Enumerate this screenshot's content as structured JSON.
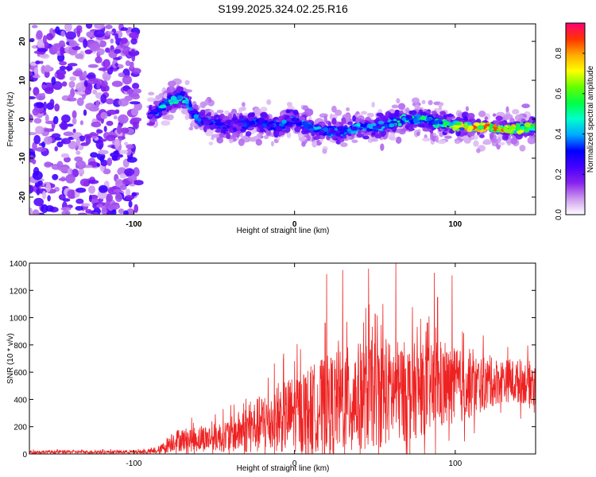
{
  "figure_title": "S199.2025.324.02.25.R16",
  "chart_data": [
    {
      "type": "heatmap",
      "title": "S199.2025.324.02.25.R16",
      "xlabel": "Height of straight line (km)",
      "ylabel": "Frequency (Hz)",
      "xlim": [
        -165,
        150
      ],
      "ylim": [
        -24.5,
        24.5
      ],
      "xticks": [
        -100,
        0,
        100
      ],
      "yticks": [
        -20,
        -10,
        0,
        10,
        20
      ],
      "colorbar": {
        "label": "Normalized spectral amplitude",
        "range": [
          0.0,
          0.95
        ],
        "ticks": [
          0.0,
          0.2,
          0.4,
          0.6,
          0.8
        ],
        "colors": [
          "#ffffff",
          "#cc99ee",
          "#8822ee",
          "#4400ff",
          "#0000ff",
          "#00aaff",
          "#00ffcc",
          "#00ff44",
          "#66ff00",
          "#ffff00",
          "#ffaa00",
          "#ff3300",
          "#ff0077"
        ]
      },
      "ridge": {
        "x": [
          -90,
          -80,
          -70,
          -60,
          -50,
          -40,
          -30,
          -20,
          -10,
          0,
          10,
          20,
          30,
          40,
          50,
          60,
          70,
          80,
          90,
          100,
          110,
          120,
          130,
          140,
          148
        ],
        "center_hz": [
          1,
          4,
          6,
          0,
          -1,
          -2,
          -1,
          -1,
          -2,
          0,
          -2,
          -3,
          -3,
          -2,
          -2,
          -1,
          0,
          0,
          -1,
          -1.5,
          -2,
          -2,
          -2.5,
          -2.5,
          -2
        ],
        "peak_amplitude": [
          0.35,
          0.5,
          0.5,
          0.4,
          0.35,
          0.3,
          0.35,
          0.35,
          0.4,
          0.4,
          0.45,
          0.4,
          0.4,
          0.45,
          0.45,
          0.5,
          0.55,
          0.55,
          0.6,
          0.7,
          0.85,
          0.9,
          0.85,
          0.7,
          0.6
        ]
      },
      "noise_region_km": [
        -165,
        -97
      ]
    },
    {
      "type": "line",
      "xlabel": "Height of straight line (km)",
      "ylabel": "SNR (10 * v/v)",
      "xlim": [
        -165,
        150
      ],
      "ylim": [
        0,
        1400
      ],
      "xticks": [
        -100,
        0,
        100
      ],
      "yticks": [
        0,
        200,
        400,
        600,
        800,
        1000,
        1200,
        1400
      ],
      "series": [
        {
          "name": "SNR",
          "color": "#ee2222",
          "envelope_x": [
            -165,
            -100,
            -85,
            -80,
            -75,
            -60,
            -50,
            -40,
            -30,
            -20,
            -10,
            0,
            10,
            20,
            30,
            40,
            50,
            60,
            70,
            80,
            90,
            100,
            110,
            120,
            130,
            140,
            150
          ],
          "baseline": [
            15,
            15,
            20,
            60,
            100,
            110,
            120,
            140,
            180,
            220,
            260,
            300,
            330,
            370,
            390,
            420,
            440,
            450,
            460,
            470,
            480,
            490,
            500,
            520,
            540,
            530,
            520
          ],
          "spread": [
            15,
            15,
            25,
            70,
            100,
            120,
            130,
            160,
            220,
            280,
            320,
            360,
            400,
            440,
            480,
            500,
            500,
            480,
            460,
            420,
            400,
            360,
            300,
            240,
            200,
            200,
            200
          ]
        }
      ],
      "peaks": [
        {
          "x": 20,
          "y": 1320
        },
        {
          "x": 30,
          "y": 1350
        },
        {
          "x": 46,
          "y": 1360
        },
        {
          "x": 63,
          "y": 1400
        },
        {
          "x": 87,
          "y": 1330
        },
        {
          "x": 98,
          "y": 1310
        },
        {
          "x": 19,
          "y": 960
        },
        {
          "x": 89,
          "y": 1150
        },
        {
          "x": 55,
          "y": 1100
        }
      ]
    }
  ]
}
